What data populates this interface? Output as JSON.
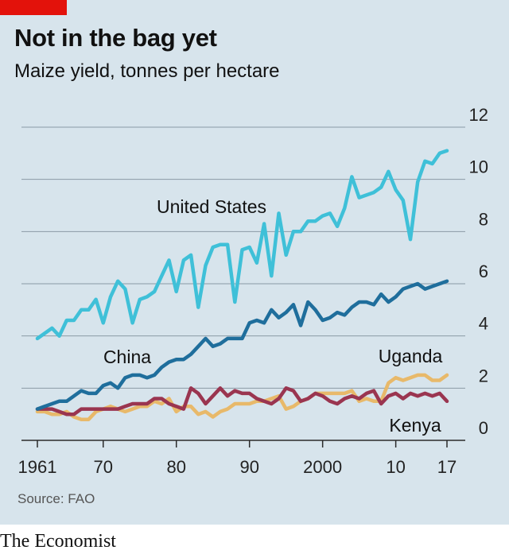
{
  "header": {
    "title": "Not in the bag yet",
    "subtitle": "Maize yield, tonnes per hectare"
  },
  "footer": {
    "source": "Source: FAO",
    "brand": "The Economist"
  },
  "colors": {
    "background": "#d7e4ec",
    "accent_tag": "#e3120b",
    "united_states": "#3fc0d8",
    "china": "#1f6e9c",
    "uganda": "#e8b96a",
    "kenya": "#9a3550",
    "grid": "#8a9aa6"
  },
  "chart_data": {
    "type": "line",
    "title": "Not in the bag yet",
    "subtitle": "Maize yield, tonnes per hectare",
    "xlim": [
      1961,
      2017
    ],
    "ylim": [
      0,
      12
    ],
    "y_axis_side": "right",
    "grid": true,
    "x_ticks": [
      1961,
      1970,
      1980,
      1990,
      2000,
      2010,
      2017
    ],
    "x_tick_labels": [
      "1961",
      "70",
      "80",
      "90",
      "2000",
      "10",
      "17"
    ],
    "y_ticks": [
      0,
      2,
      4,
      6,
      8,
      10,
      12
    ],
    "y_tick_labels": [
      "0",
      "2",
      "4",
      "6",
      "8",
      "10",
      "12"
    ],
    "series": [
      {
        "name": "United States",
        "color": "#3fc0d8",
        "x": [
          1961,
          1962,
          1963,
          1964,
          1965,
          1966,
          1967,
          1968,
          1969,
          1970,
          1971,
          1972,
          1973,
          1974,
          1975,
          1976,
          1977,
          1978,
          1979,
          1980,
          1981,
          1982,
          1983,
          1984,
          1985,
          1986,
          1987,
          1988,
          1989,
          1990,
          1991,
          1992,
          1993,
          1994,
          1995,
          1996,
          1997,
          1998,
          1999,
          2000,
          2001,
          2002,
          2003,
          2004,
          2005,
          2006,
          2007,
          2008,
          2009,
          2010,
          2011,
          2012,
          2013,
          2014,
          2015,
          2016,
          2017
        ],
        "y": [
          3.9,
          4.1,
          4.3,
          4.0,
          4.6,
          4.6,
          5.0,
          5.0,
          5.4,
          4.5,
          5.5,
          6.1,
          5.8,
          4.5,
          5.4,
          5.5,
          5.7,
          6.3,
          6.9,
          5.7,
          6.9,
          7.1,
          5.1,
          6.7,
          7.4,
          7.5,
          7.5,
          5.3,
          7.3,
          7.4,
          6.8,
          8.3,
          6.3,
          8.7,
          7.1,
          8.0,
          8.0,
          8.4,
          8.4,
          8.6,
          8.7,
          8.2,
          8.9,
          10.1,
          9.3,
          9.4,
          9.5,
          9.7,
          10.3,
          9.6,
          9.2,
          7.7,
          9.9,
          10.7,
          10.6,
          11.0,
          11.1
        ]
      },
      {
        "name": "China",
        "color": "#1f6e9c",
        "x": [
          1961,
          1962,
          1963,
          1964,
          1965,
          1966,
          1967,
          1968,
          1969,
          1970,
          1971,
          1972,
          1973,
          1974,
          1975,
          1976,
          1977,
          1978,
          1979,
          1980,
          1981,
          1982,
          1983,
          1984,
          1985,
          1986,
          1987,
          1988,
          1989,
          1990,
          1991,
          1992,
          1993,
          1994,
          1995,
          1996,
          1997,
          1998,
          1999,
          2000,
          2001,
          2002,
          2003,
          2004,
          2005,
          2006,
          2007,
          2008,
          2009,
          2010,
          2011,
          2012,
          2013,
          2014,
          2015,
          2016,
          2017
        ],
        "y": [
          1.2,
          1.3,
          1.4,
          1.5,
          1.5,
          1.7,
          1.9,
          1.8,
          1.8,
          2.1,
          2.2,
          2.0,
          2.4,
          2.5,
          2.5,
          2.4,
          2.5,
          2.8,
          3.0,
          3.1,
          3.1,
          3.3,
          3.6,
          3.9,
          3.6,
          3.7,
          3.9,
          3.9,
          3.9,
          4.5,
          4.6,
          4.5,
          5.0,
          4.7,
          4.9,
          5.2,
          4.4,
          5.3,
          5.0,
          4.6,
          4.7,
          4.9,
          4.8,
          5.1,
          5.3,
          5.3,
          5.2,
          5.6,
          5.3,
          5.5,
          5.8,
          5.9,
          6.0,
          5.8,
          5.9,
          6.0,
          6.1
        ]
      },
      {
        "name": "Uganda",
        "color": "#e8b96a",
        "x": [
          1961,
          1962,
          1963,
          1964,
          1965,
          1966,
          1967,
          1968,
          1969,
          1970,
          1971,
          1972,
          1973,
          1974,
          1975,
          1976,
          1977,
          1978,
          1979,
          1980,
          1981,
          1982,
          1983,
          1984,
          1985,
          1986,
          1987,
          1988,
          1989,
          1990,
          1991,
          1992,
          1993,
          1994,
          1995,
          1996,
          1997,
          1998,
          1999,
          2000,
          2001,
          2002,
          2003,
          2004,
          2005,
          2006,
          2007,
          2008,
          2009,
          2010,
          2011,
          2012,
          2013,
          2014,
          2015,
          2016,
          2017
        ],
        "y": [
          1.1,
          1.1,
          1.0,
          1.0,
          1.1,
          0.9,
          0.8,
          0.8,
          1.1,
          1.2,
          1.3,
          1.2,
          1.1,
          1.2,
          1.3,
          1.3,
          1.5,
          1.4,
          1.6,
          1.1,
          1.3,
          1.3,
          1.0,
          1.1,
          0.9,
          1.1,
          1.2,
          1.4,
          1.4,
          1.4,
          1.5,
          1.5,
          1.6,
          1.7,
          1.2,
          1.3,
          1.5,
          1.6,
          1.8,
          1.8,
          1.8,
          1.8,
          1.8,
          1.9,
          1.5,
          1.6,
          1.5,
          1.5,
          2.2,
          2.4,
          2.3,
          2.4,
          2.5,
          2.5,
          2.3,
          2.3,
          2.5
        ]
      },
      {
        "name": "Kenya",
        "color": "#9a3550",
        "x": [
          1961,
          1962,
          1963,
          1964,
          1965,
          1966,
          1967,
          1968,
          1969,
          1970,
          1971,
          1972,
          1973,
          1974,
          1975,
          1976,
          1977,
          1978,
          1979,
          1980,
          1981,
          1982,
          1983,
          1984,
          1985,
          1986,
          1987,
          1988,
          1989,
          1990,
          1991,
          1992,
          1993,
          1994,
          1995,
          1996,
          1997,
          1998,
          1999,
          2000,
          2001,
          2002,
          2003,
          2004,
          2005,
          2006,
          2007,
          2008,
          2009,
          2010,
          2011,
          2012,
          2013,
          2014,
          2015,
          2016,
          2017
        ],
        "y": [
          1.2,
          1.2,
          1.2,
          1.1,
          1.0,
          1.0,
          1.2,
          1.2,
          1.2,
          1.2,
          1.2,
          1.2,
          1.3,
          1.4,
          1.4,
          1.4,
          1.6,
          1.6,
          1.4,
          1.3,
          1.2,
          2.0,
          1.8,
          1.4,
          1.7,
          2.0,
          1.7,
          1.9,
          1.8,
          1.8,
          1.6,
          1.5,
          1.4,
          1.6,
          2.0,
          1.9,
          1.5,
          1.6,
          1.8,
          1.7,
          1.5,
          1.4,
          1.6,
          1.7,
          1.6,
          1.8,
          1.9,
          1.4,
          1.7,
          1.8,
          1.6,
          1.8,
          1.7,
          1.8,
          1.7,
          1.8,
          1.5
        ]
      }
    ],
    "annotations": [
      {
        "text": "United States",
        "series": "United States"
      },
      {
        "text": "China",
        "series": "China"
      },
      {
        "text": "Uganda",
        "series": "Uganda"
      },
      {
        "text": "Kenya",
        "series": "Kenya"
      }
    ]
  }
}
